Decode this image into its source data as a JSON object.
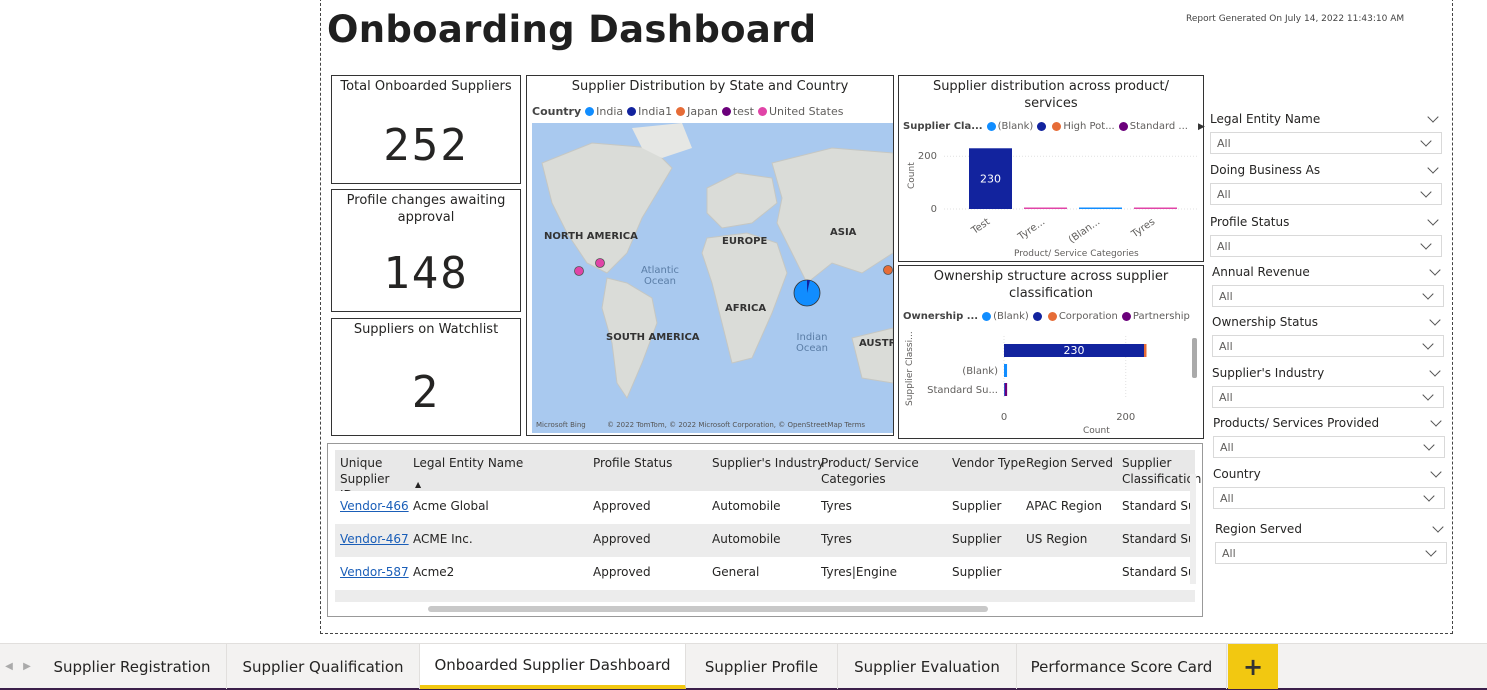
{
  "header": {
    "title": "Onboarding Dashboard",
    "generated": "Report Generated On July 14, 2022 11:43:10 AM"
  },
  "kpis": [
    {
      "label": "Total Onboarded Suppliers",
      "value": "252"
    },
    {
      "label": "Profile changes awaiting approval",
      "value": "148"
    },
    {
      "label": "Suppliers on Watchlist",
      "value": "2"
    }
  ],
  "map_visual": {
    "title": "Supplier Distribution by State and Country",
    "legend_title": "Country",
    "legend": [
      {
        "name": "India",
        "color": "#118dff"
      },
      {
        "name": "India1",
        "color": "#12239e"
      },
      {
        "name": "Japan",
        "color": "#e66c37"
      },
      {
        "name": "test",
        "color": "#6b007b"
      },
      {
        "name": "United States",
        "color": "#e044a7"
      }
    ],
    "labels": {
      "north_america": "NORTH AMERICA",
      "south_america": "SOUTH AMERICA",
      "europe": "EUROPE",
      "africa": "AFRICA",
      "asia": "ASIA",
      "australia": "AUSTR",
      "atlantic": "Atlantic Ocean",
      "indian": "Indian Ocean"
    },
    "bing": "Microsoft Bing",
    "attribution": "© 2022 TomTom, © 2022 Microsoft Corporation, © OpenStreetMap  Terms"
  },
  "product_chart": {
    "title": "Supplier distribution across product/ services",
    "legend_title": "Supplier Cla...",
    "legend": [
      {
        "name": "(Blank)",
        "color": "#118dff"
      },
      {
        "name": "",
        "color": "#12239e"
      },
      {
        "name": "High Pot...",
        "color": "#e66c37"
      },
      {
        "name": "Standard ...",
        "color": "#6b007b"
      }
    ],
    "ylabel": "Count",
    "xlabel": "Product/ Service Categories",
    "yticks": [
      "200",
      "0"
    ]
  },
  "ownership_chart": {
    "title": "Ownership structure across supplier classification",
    "legend_title": "Ownership ...",
    "legend": [
      {
        "name": "(Blank)",
        "color": "#118dff"
      },
      {
        "name": "",
        "color": "#12239e"
      },
      {
        "name": "Corporation",
        "color": "#e66c37"
      },
      {
        "name": "Partnership",
        "color": "#6b007b"
      }
    ],
    "ylabel": "Supplier Classi...",
    "xlabel": "Count",
    "xticks": [
      "0",
      "200"
    ]
  },
  "chart_data": [
    {
      "type": "bar",
      "title": "Supplier distribution across product/ services",
      "xlabel": "Product/ Service Categories",
      "ylabel": "Count",
      "categories": [
        "Test",
        "Tyre...",
        "(Blan...",
        "Tyres"
      ],
      "ylim": [
        0,
        250
      ],
      "series": [
        {
          "name": "",
          "color": "#12239e",
          "values": [
            230,
            0,
            0,
            0
          ]
        },
        {
          "name": "Standard ...",
          "color": "#e044a7",
          "values": [
            0,
            4,
            0,
            3
          ]
        },
        {
          "name": "(Blank)",
          "color": "#118dff",
          "values": [
            0,
            0,
            2,
            0
          ]
        }
      ],
      "data_labels": [
        "230",
        "",
        "",
        ""
      ]
    },
    {
      "type": "bar",
      "orientation": "horizontal",
      "title": "Ownership structure across supplier classification",
      "xlabel": "Count",
      "ylabel": "Supplier Classi...",
      "categories": [
        "",
        "(Blank)",
        "Standard Su..."
      ],
      "xlim": [
        0,
        230
      ],
      "series": [
        {
          "name": "",
          "color": "#12239e",
          "values": [
            230,
            0,
            0
          ]
        },
        {
          "name": "Corporation",
          "color": "#e66c37",
          "values": [
            2,
            0,
            0
          ]
        },
        {
          "name": "(Blank)",
          "color": "#118dff",
          "values": [
            0,
            5,
            1
          ]
        },
        {
          "name": "Partnership",
          "color": "#6b007b",
          "values": [
            0,
            0,
            2
          ]
        }
      ],
      "data_labels": [
        "230",
        "",
        ""
      ]
    }
  ],
  "table": {
    "headers": [
      "Unique Supplier ID",
      "Legal Entity Name",
      "Profile Status",
      "Supplier's Industry",
      "Product/ Service Categories",
      "Vendor Type",
      "Region Served",
      "Supplier Classification"
    ],
    "rows": [
      [
        "Vendor-466",
        "Acme Global",
        "Approved",
        "Automobile",
        "Tyres",
        "Supplier",
        "APAC Region",
        "Standard Sup"
      ],
      [
        "Vendor-467",
        "ACME Inc.",
        "Approved",
        "Automobile",
        "Tyres",
        "Supplier",
        "US Region",
        "Standard Sup"
      ],
      [
        "Vendor-587",
        "Acme2",
        "Approved",
        "General",
        "Tyres|Engine",
        "Supplier",
        "",
        "Standard Sup"
      ]
    ]
  },
  "slicers": [
    {
      "label": "Legal Entity Name",
      "value": "All"
    },
    {
      "label": "Doing Business As",
      "value": "All"
    },
    {
      "label": "Profile Status",
      "value": "All"
    },
    {
      "label": "Annual Revenue",
      "value": "All"
    },
    {
      "label": "Ownership Status",
      "value": "All"
    },
    {
      "label": "Supplier's Industry",
      "value": "All"
    },
    {
      "label": "Products/ Services Provided",
      "value": "All"
    },
    {
      "label": "Country",
      "value": "All"
    },
    {
      "label": "Region Served",
      "value": "All"
    }
  ],
  "tabs": [
    {
      "label": "Supplier Registration"
    },
    {
      "label": "Supplier Qualification"
    },
    {
      "label": "Onboarded Supplier Dashboard"
    },
    {
      "label": "Supplier Profile"
    },
    {
      "label": "Supplier Evaluation"
    },
    {
      "label": "Performance Score Card"
    }
  ],
  "tab_add": "+"
}
